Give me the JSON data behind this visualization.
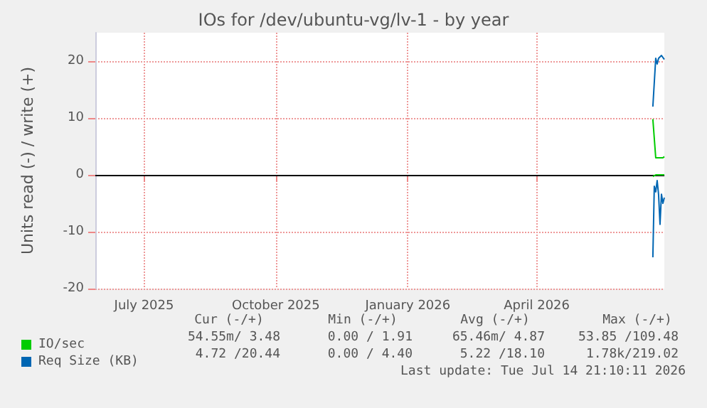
{
  "chart_data": {
    "type": "line",
    "title": "IOs for /dev/ubuntu-vg/lv-1 - by year",
    "ylabel": "Units read (-) / write (+)",
    "xlim": [
      "2025-06-12",
      "2026-07-14"
    ],
    "xticks": [
      {
        "value": "2025-07-16",
        "label": "July 2025"
      },
      {
        "value": "2025-10-16",
        "label": "October 2025"
      },
      {
        "value": "2026-01-16",
        "label": "January 2026"
      },
      {
        "value": "2026-04-16",
        "label": "April 2026"
      }
    ],
    "ylim": [
      -20,
      25
    ],
    "yticks": [
      -20,
      -10,
      0,
      10,
      20
    ],
    "grid": true,
    "legend": "bottom left",
    "ref_lines": [
      {
        "axis": "y",
        "value": 0,
        "color": "#000000"
      }
    ],
    "series": [
      {
        "name": "IO/sec",
        "color": "#00cc00",
        "x": [
          "2026-07-06",
          "2026-07-08",
          "2026-07-13",
          "2026-07-14"
        ],
        "values": [
          9.8,
          3,
          3,
          3.2
        ]
      },
      {
        "color": "#00cc00",
        "x": [
          "2026-07-06",
          "2026-07-08",
          "2026-07-14"
        ],
        "values": [
          -0.3,
          0,
          0
        ]
      },
      {
        "name": "Req Size (KB)",
        "color": "#0066b3",
        "x": [
          "2026-07-06",
          "2026-07-08",
          "2026-07-09",
          "2026-07-10",
          "2026-07-12",
          "2026-07-14"
        ],
        "values": [
          12,
          20.5,
          19.5,
          20.5,
          21,
          20.3
        ]
      },
      {
        "color": "#0066b3",
        "x": [
          "2026-07-06",
          "2026-07-07",
          "2026-07-08",
          "2026-07-09",
          "2026-07-10",
          "2026-07-11",
          "2026-07-12",
          "2026-07-13",
          "2026-07-14"
        ],
        "values": [
          -14.5,
          -2,
          -3,
          -1,
          -3.5,
          -8.7,
          -3.4,
          -5,
          -4
        ]
      }
    ],
    "annotations": [
      "Cur (-/+)",
      "Min (-/+)",
      "Avg (-/+)",
      "Max (-/+)",
      "54.55m/ 3.48",
      "0.00 / 1.91",
      "65.46m/ 4.87",
      "53.85 /109.48",
      "4.72 /20.44",
      "0.00 / 4.40",
      "5.22 /18.10",
      "1.78k/219.02",
      "Last update: Tue Jul 14 21:10:11 2026"
    ]
  }
}
